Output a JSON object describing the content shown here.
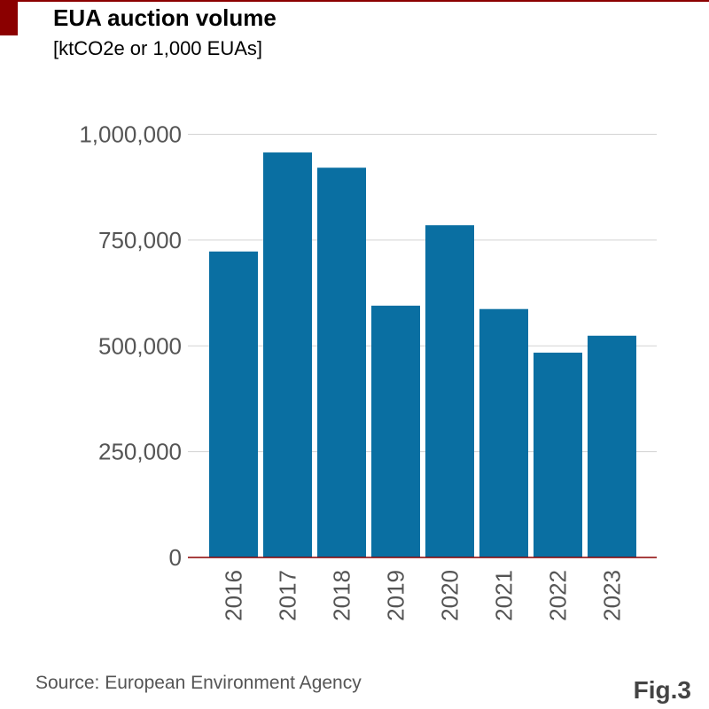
{
  "header": {
    "title": "EUA auction volume",
    "subtitle": "[ktCO2e or 1,000 EUAs]"
  },
  "footer": {
    "source": "Source: European Environment Agency",
    "figure_label": "Fig.3"
  },
  "colors": {
    "bar": "#0a6fa2",
    "accent": "#8b0000",
    "grid": "#d3d3d3"
  },
  "chart_data": {
    "type": "bar",
    "title": "EUA auction volume",
    "subtitle": "[ktCO2e or 1,000 EUAs]",
    "xlabel": "",
    "ylabel": "",
    "categories": [
      "2016",
      "2017",
      "2018",
      "2019",
      "2020",
      "2021",
      "2022",
      "2023"
    ],
    "values": [
      723000,
      957000,
      921000,
      595000,
      785000,
      587000,
      484000,
      524000
    ],
    "ylim": [
      0,
      1000000
    ],
    "yticks": [
      0,
      250000,
      500000,
      750000,
      1000000
    ],
    "ytick_labels": [
      "0",
      "250,000",
      "500,000",
      "750,000",
      "1,000,000"
    ],
    "grid": true,
    "legend": "none"
  }
}
